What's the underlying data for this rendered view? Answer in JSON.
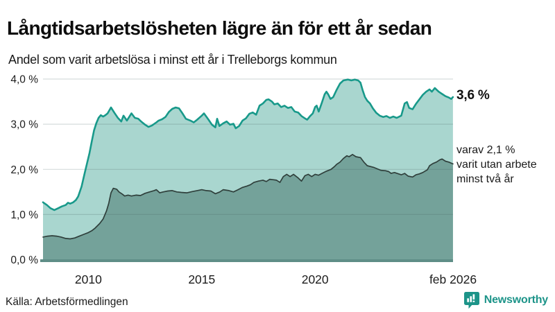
{
  "header": {
    "title": "Långtidsarbetslösheten lägre än för ett år sedan",
    "subtitle": "Andel som varit arbetslösa i minst ett år i Trelleborgs kommun"
  },
  "chart_data": {
    "type": "area",
    "title": "Långtidsarbetslösheten lägre än för ett år sedan",
    "subtitle": "Andel som varit arbetslösa i minst ett år i Trelleborgs kommun",
    "unit": "%",
    "grid": true,
    "legend_position": "none",
    "x_axis": {
      "range": [
        2008.0,
        2026.083
      ],
      "ticks": [
        {
          "x": 2010,
          "label": "2010"
        },
        {
          "x": 2015,
          "label": "2015"
        },
        {
          "x": 2020,
          "label": "2020"
        },
        {
          "x": 2026.083,
          "label": "feb 2026"
        }
      ]
    },
    "y_axis": {
      "range": [
        0,
        4
      ],
      "ticks": [
        {
          "value": 0,
          "label": "0,0 %"
        },
        {
          "value": 1,
          "label": "1,0 %"
        },
        {
          "value": 2,
          "label": "2,0 %"
        },
        {
          "value": 3,
          "label": "3,0 %"
        },
        {
          "value": 4,
          "label": "4,0 %"
        }
      ]
    },
    "series": [
      {
        "id": "total",
        "end_value": 3.6,
        "line_color": "#18998a",
        "fill_color": "#a9d6cf",
        "line_width": 2.6,
        "points": [
          [
            2008.0,
            1.27
          ],
          [
            2008.17,
            1.21
          ],
          [
            2008.33,
            1.14
          ],
          [
            2008.5,
            1.1
          ],
          [
            2008.67,
            1.14
          ],
          [
            2008.83,
            1.18
          ],
          [
            2009.0,
            1.21
          ],
          [
            2009.1,
            1.26
          ],
          [
            2009.2,
            1.24
          ],
          [
            2009.33,
            1.27
          ],
          [
            2009.45,
            1.32
          ],
          [
            2009.55,
            1.4
          ],
          [
            2009.7,
            1.62
          ],
          [
            2009.83,
            1.9
          ],
          [
            2009.95,
            2.15
          ],
          [
            2010.05,
            2.36
          ],
          [
            2010.15,
            2.62
          ],
          [
            2010.25,
            2.86
          ],
          [
            2010.35,
            3.02
          ],
          [
            2010.45,
            3.14
          ],
          [
            2010.55,
            3.2
          ],
          [
            2010.65,
            3.17
          ],
          [
            2010.75,
            3.2
          ],
          [
            2010.85,
            3.24
          ],
          [
            2011.0,
            3.37
          ],
          [
            2011.15,
            3.25
          ],
          [
            2011.3,
            3.14
          ],
          [
            2011.45,
            3.06
          ],
          [
            2011.55,
            3.19
          ],
          [
            2011.7,
            3.08
          ],
          [
            2011.9,
            3.24
          ],
          [
            2012.05,
            3.14
          ],
          [
            2012.2,
            3.12
          ],
          [
            2012.35,
            3.05
          ],
          [
            2012.5,
            2.99
          ],
          [
            2012.65,
            2.94
          ],
          [
            2012.8,
            2.97
          ],
          [
            2013.0,
            3.04
          ],
          [
            2013.1,
            3.08
          ],
          [
            2013.25,
            3.11
          ],
          [
            2013.4,
            3.16
          ],
          [
            2013.55,
            3.27
          ],
          [
            2013.7,
            3.34
          ],
          [
            2013.85,
            3.37
          ],
          [
            2014.0,
            3.35
          ],
          [
            2014.15,
            3.24
          ],
          [
            2014.3,
            3.12
          ],
          [
            2014.5,
            3.08
          ],
          [
            2014.65,
            3.04
          ],
          [
            2014.8,
            3.1
          ],
          [
            2015.0,
            3.19
          ],
          [
            2015.1,
            3.24
          ],
          [
            2015.3,
            3.1
          ],
          [
            2015.45,
            2.99
          ],
          [
            2015.6,
            2.93
          ],
          [
            2015.68,
            3.12
          ],
          [
            2015.78,
            2.96
          ],
          [
            2015.95,
            3.02
          ],
          [
            2016.1,
            3.06
          ],
          [
            2016.25,
            2.99
          ],
          [
            2016.4,
            3.01
          ],
          [
            2016.5,
            2.91
          ],
          [
            2016.65,
            2.96
          ],
          [
            2016.8,
            3.08
          ],
          [
            2016.95,
            3.13
          ],
          [
            2017.1,
            3.23
          ],
          [
            2017.25,
            3.26
          ],
          [
            2017.4,
            3.21
          ],
          [
            2017.55,
            3.41
          ],
          [
            2017.7,
            3.46
          ],
          [
            2017.85,
            3.54
          ],
          [
            2017.95,
            3.55
          ],
          [
            2018.1,
            3.5
          ],
          [
            2018.2,
            3.44
          ],
          [
            2018.35,
            3.46
          ],
          [
            2018.5,
            3.38
          ],
          [
            2018.65,
            3.41
          ],
          [
            2018.8,
            3.36
          ],
          [
            2018.95,
            3.38
          ],
          [
            2019.1,
            3.28
          ],
          [
            2019.25,
            3.26
          ],
          [
            2019.4,
            3.18
          ],
          [
            2019.55,
            3.13
          ],
          [
            2019.65,
            3.1
          ],
          [
            2019.78,
            3.18
          ],
          [
            2019.9,
            3.24
          ],
          [
            2020.0,
            3.38
          ],
          [
            2020.07,
            3.41
          ],
          [
            2020.16,
            3.28
          ],
          [
            2020.3,
            3.48
          ],
          [
            2020.42,
            3.66
          ],
          [
            2020.5,
            3.72
          ],
          [
            2020.58,
            3.66
          ],
          [
            2020.68,
            3.56
          ],
          [
            2020.8,
            3.6
          ],
          [
            2020.95,
            3.76
          ],
          [
            2021.1,
            3.9
          ],
          [
            2021.25,
            3.97
          ],
          [
            2021.45,
            3.99
          ],
          [
            2021.6,
            3.97
          ],
          [
            2021.75,
            3.99
          ],
          [
            2021.9,
            3.97
          ],
          [
            2022.0,
            3.92
          ],
          [
            2022.1,
            3.75
          ],
          [
            2022.2,
            3.6
          ],
          [
            2022.3,
            3.52
          ],
          [
            2022.42,
            3.46
          ],
          [
            2022.55,
            3.35
          ],
          [
            2022.7,
            3.25
          ],
          [
            2022.85,
            3.19
          ],
          [
            2023.0,
            3.16
          ],
          [
            2023.15,
            3.18
          ],
          [
            2023.3,
            3.14
          ],
          [
            2023.45,
            3.17
          ],
          [
            2023.6,
            3.14
          ],
          [
            2023.8,
            3.19
          ],
          [
            2023.95,
            3.46
          ],
          [
            2024.05,
            3.49
          ],
          [
            2024.15,
            3.36
          ],
          [
            2024.3,
            3.33
          ],
          [
            2024.45,
            3.45
          ],
          [
            2024.6,
            3.55
          ],
          [
            2024.75,
            3.65
          ],
          [
            2024.9,
            3.72
          ],
          [
            2025.05,
            3.77
          ],
          [
            2025.15,
            3.72
          ],
          [
            2025.28,
            3.8
          ],
          [
            2025.45,
            3.72
          ],
          [
            2025.6,
            3.67
          ],
          [
            2025.75,
            3.62
          ],
          [
            2025.9,
            3.59
          ],
          [
            2026.0,
            3.56
          ],
          [
            2026.08,
            3.6
          ]
        ]
      },
      {
        "id": "two_year",
        "end_value": 2.1,
        "line_color": "#2f3f3b",
        "fill_color": "#74a29a",
        "line_width": 1.7,
        "points": [
          [
            2008.0,
            0.5
          ],
          [
            2008.2,
            0.52
          ],
          [
            2008.4,
            0.53
          ],
          [
            2008.6,
            0.52
          ],
          [
            2008.8,
            0.5
          ],
          [
            2009.0,
            0.47
          ],
          [
            2009.2,
            0.46
          ],
          [
            2009.4,
            0.48
          ],
          [
            2009.6,
            0.52
          ],
          [
            2009.8,
            0.56
          ],
          [
            2010.0,
            0.6
          ],
          [
            2010.15,
            0.64
          ],
          [
            2010.3,
            0.7
          ],
          [
            2010.5,
            0.8
          ],
          [
            2010.65,
            0.9
          ],
          [
            2010.8,
            1.08
          ],
          [
            2010.9,
            1.25
          ],
          [
            2011.0,
            1.48
          ],
          [
            2011.1,
            1.58
          ],
          [
            2011.25,
            1.56
          ],
          [
            2011.35,
            1.5
          ],
          [
            2011.5,
            1.45
          ],
          [
            2011.6,
            1.41
          ],
          [
            2011.75,
            1.43
          ],
          [
            2011.9,
            1.41
          ],
          [
            2012.1,
            1.43
          ],
          [
            2012.3,
            1.42
          ],
          [
            2012.5,
            1.47
          ],
          [
            2012.7,
            1.5
          ],
          [
            2012.9,
            1.53
          ],
          [
            2013.0,
            1.55
          ],
          [
            2013.15,
            1.48
          ],
          [
            2013.3,
            1.5
          ],
          [
            2013.5,
            1.52
          ],
          [
            2013.7,
            1.53
          ],
          [
            2013.9,
            1.5
          ],
          [
            2014.1,
            1.49
          ],
          [
            2014.35,
            1.48
          ],
          [
            2014.6,
            1.51
          ],
          [
            2014.8,
            1.53
          ],
          [
            2015.0,
            1.55
          ],
          [
            2015.2,
            1.53
          ],
          [
            2015.4,
            1.52
          ],
          [
            2015.6,
            1.46
          ],
          [
            2015.8,
            1.5
          ],
          [
            2015.95,
            1.55
          ],
          [
            2016.2,
            1.53
          ],
          [
            2016.4,
            1.5
          ],
          [
            2016.6,
            1.55
          ],
          [
            2016.8,
            1.6
          ],
          [
            2017.0,
            1.63
          ],
          [
            2017.15,
            1.66
          ],
          [
            2017.3,
            1.71
          ],
          [
            2017.5,
            1.74
          ],
          [
            2017.7,
            1.76
          ],
          [
            2017.85,
            1.73
          ],
          [
            2018.0,
            1.78
          ],
          [
            2018.15,
            1.77
          ],
          [
            2018.3,
            1.76
          ],
          [
            2018.45,
            1.71
          ],
          [
            2018.6,
            1.84
          ],
          [
            2018.75,
            1.89
          ],
          [
            2018.9,
            1.84
          ],
          [
            2019.05,
            1.89
          ],
          [
            2019.25,
            1.81
          ],
          [
            2019.4,
            1.74
          ],
          [
            2019.55,
            1.86
          ],
          [
            2019.7,
            1.89
          ],
          [
            2019.85,
            1.84
          ],
          [
            2020.0,
            1.89
          ],
          [
            2020.15,
            1.87
          ],
          [
            2020.3,
            1.91
          ],
          [
            2020.5,
            1.96
          ],
          [
            2020.7,
            2.0
          ],
          [
            2020.85,
            2.06
          ],
          [
            2020.95,
            2.11
          ],
          [
            2021.1,
            2.16
          ],
          [
            2021.25,
            2.24
          ],
          [
            2021.4,
            2.3
          ],
          [
            2021.5,
            2.28
          ],
          [
            2021.65,
            2.33
          ],
          [
            2021.8,
            2.28
          ],
          [
            2022.0,
            2.26
          ],
          [
            2022.15,
            2.16
          ],
          [
            2022.3,
            2.08
          ],
          [
            2022.6,
            2.04
          ],
          [
            2022.9,
            1.98
          ],
          [
            2023.1,
            1.97
          ],
          [
            2023.25,
            1.95
          ],
          [
            2023.35,
            1.91
          ],
          [
            2023.5,
            1.93
          ],
          [
            2023.8,
            1.88
          ],
          [
            2023.95,
            1.91
          ],
          [
            2024.1,
            1.85
          ],
          [
            2024.3,
            1.83
          ],
          [
            2024.45,
            1.88
          ],
          [
            2024.6,
            1.9
          ],
          [
            2024.75,
            1.93
          ],
          [
            2024.95,
            1.99
          ],
          [
            2025.05,
            2.08
          ],
          [
            2025.2,
            2.13
          ],
          [
            2025.35,
            2.16
          ],
          [
            2025.5,
            2.21
          ],
          [
            2025.6,
            2.23
          ],
          [
            2025.75,
            2.18
          ],
          [
            2025.9,
            2.16
          ],
          [
            2026.08,
            2.12
          ]
        ]
      }
    ],
    "end_labels": {
      "total": "3,6 %",
      "two_year_lines": [
        "varav 2,1 %",
        "varit utan arbete",
        "minst två år"
      ]
    }
  },
  "footer": {
    "source": "Källa: Arbetsförmedlingen",
    "brand_name": "Newsworthy"
  },
  "colors": {
    "accent_teal": "#18998a",
    "area_light": "#a9d6cf",
    "area_dark": "#74a29a",
    "line_dark": "#2f3f3b",
    "baseline": "#5f8e87",
    "grid_overlay": "rgba(70,95,95,0.22)",
    "axis_text": "#1c1c1c",
    "brand": "#1d9489"
  }
}
